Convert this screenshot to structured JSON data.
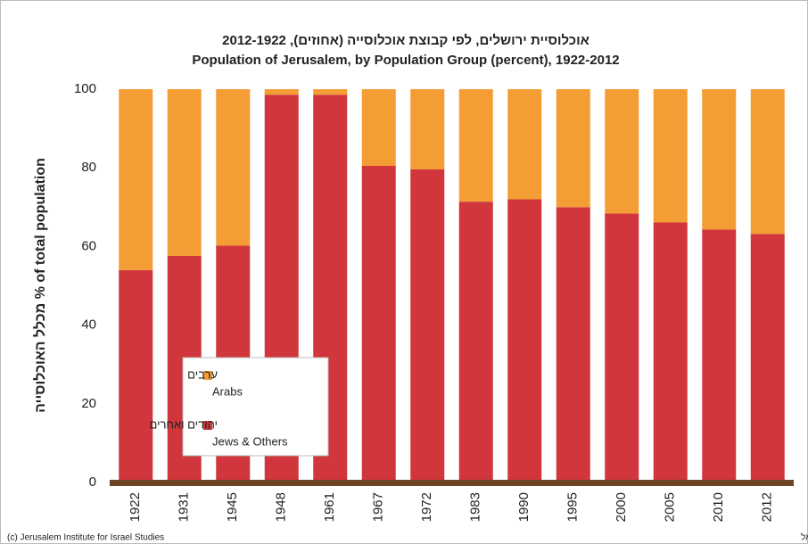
{
  "chart_data": {
    "type": "stacked_bar",
    "title": "אוכלוסיית ירושלים, לפי קבוצת אוכלוסייה (אחוזים), 2012-1922",
    "subtitle": "Population of Jerusalem, by Population Group (percent), 1922-2012",
    "y_label": "מכלל האוכלוסייה % of total population",
    "categories": [
      "1922",
      "1931",
      "1945",
      "1948",
      "1961",
      "1967",
      "1972",
      "1983",
      "1990",
      "1995",
      "2000",
      "2005",
      "2010",
      "2012"
    ],
    "series": [
      {
        "name": "יהודים ואחרים",
        "name_en": "Jews & Others",
        "color": "#d0363b",
        "values": [
          54,
          57.6,
          60.2,
          98.6,
          98.6,
          80.5,
          79.6,
          71.4,
          72,
          70,
          68.4,
          66.1,
          64.3,
          63.2
        ]
      },
      {
        "name": "ערבים",
        "name_en": "Arabs",
        "color": "#f59d35",
        "values": [
          46,
          42.4,
          39.8,
          1.4,
          1.4,
          19.5,
          20.4,
          28.6,
          28,
          30,
          31.6,
          33.9,
          35.7,
          36.8
        ]
      }
    ],
    "ylim": [
      0,
      100
    ],
    "yticks": [
      0,
      20,
      40,
      60,
      80,
      100
    ],
    "footer_left": "(c) Jerusalem Institute for Israel Studies",
    "footer_right": "(c) מכון ירושלים לחקר ישראל"
  }
}
